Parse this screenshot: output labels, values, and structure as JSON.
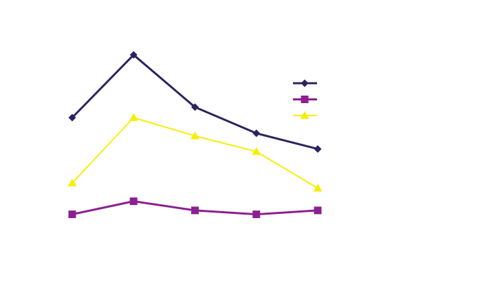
{
  "colors": {
    "background": "#ffffff",
    "series_1": "#2a235f",
    "series_2": "#8b2090",
    "series_3": "#f5ef0a"
  },
  "chart_data": {
    "type": "line",
    "title": "",
    "xlabel": "",
    "ylabel": "",
    "categories": [
      "",
      "",
      "",
      "",
      ""
    ],
    "ylim": [
      0,
      100
    ],
    "grid": false,
    "legend_position": "right",
    "series": [
      {
        "name": "",
        "color": "#2a235f",
        "marker": "diamond",
        "values": [
          55,
          79,
          59,
          49,
          43
        ]
      },
      {
        "name": "",
        "color": "#8b2090",
        "marker": "square",
        "values": [
          18,
          23,
          19.5,
          18,
          19.5
        ]
      },
      {
        "name": "",
        "color": "#f5ef0a",
        "marker": "triangle",
        "values": [
          30,
          55,
          48,
          42,
          28
        ]
      }
    ]
  }
}
